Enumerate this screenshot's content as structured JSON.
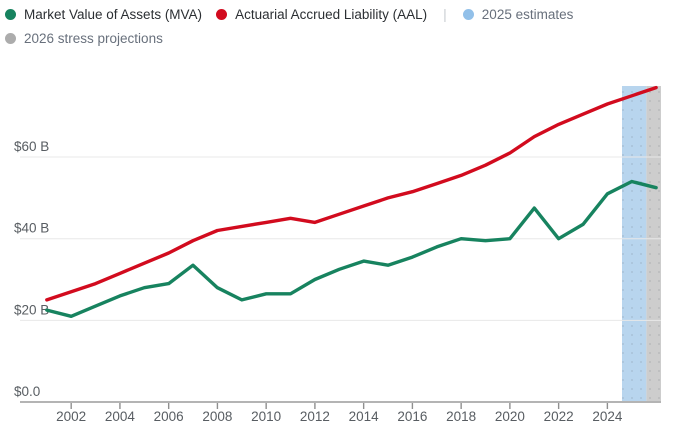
{
  "legend": {
    "separator": "|",
    "items": [
      {
        "id": "mva",
        "label": "Market Value of Assets (MVA)",
        "color": "#17835f",
        "muted": false
      },
      {
        "id": "aal",
        "label": "Actuarial Accrued Liability (AAL)",
        "color": "#d20b1e",
        "muted": false
      },
      {
        "id": "estimates-2025",
        "label": "2025 estimates",
        "color": "#92c0e9",
        "muted": true
      },
      {
        "id": "stress-2026",
        "label": "2026 stress projections",
        "color": "#acacac",
        "muted": true
      }
    ]
  },
  "chart_data": {
    "type": "line",
    "x": [
      2001,
      2002,
      2003,
      2004,
      2005,
      2006,
      2007,
      2008,
      2009,
      2010,
      2011,
      2012,
      2013,
      2014,
      2015,
      2016,
      2017,
      2018,
      2019,
      2020,
      2021,
      2022,
      2023,
      2024,
      2025,
      2026
    ],
    "series": [
      {
        "name": "Market Value of Assets (MVA)",
        "color": "#17835f",
        "values": [
          22.5,
          21,
          23.5,
          26,
          28,
          29,
          33.5,
          28,
          25,
          26.5,
          26.5,
          30,
          32.5,
          34.5,
          33.5,
          35.5,
          38,
          40,
          39.5,
          40,
          47.5,
          40,
          43.5,
          51,
          54,
          52.5
        ]
      },
      {
        "name": "Actuarial Accrued Liability (AAL)",
        "color": "#d20b1e",
        "values": [
          25,
          27,
          29,
          31.5,
          34,
          36.5,
          39.5,
          42,
          43,
          44,
          45,
          44,
          46,
          48,
          50,
          51.5,
          53.5,
          55.5,
          58,
          61,
          65,
          68,
          70.5,
          73,
          75,
          77
        ]
      }
    ],
    "bands": [
      {
        "label": "2025 estimates",
        "x_start": 2024.6,
        "x_end": 2025.6,
        "color": "#b8d5ee"
      },
      {
        "label": "2026 stress projections",
        "x_start": 2025.6,
        "x_end": 2026.2,
        "color": "#cdcdcd"
      }
    ],
    "y_ticks": [
      {
        "value": 0,
        "label": "$0.0"
      },
      {
        "value": 20,
        "label": "$20 B"
      },
      {
        "value": 40,
        "label": "$40 B"
      },
      {
        "value": 60,
        "label": "$60 B"
      }
    ],
    "x_ticks": [
      2002,
      2004,
      2006,
      2008,
      2010,
      2012,
      2014,
      2016,
      2018,
      2020,
      2022,
      2024
    ],
    "xlim": [
      1999.9,
      2026.2
    ],
    "ylim": [
      0,
      77.4
    ],
    "grid": true,
    "legend_position": "top-left",
    "unit": "billions USD"
  },
  "colors": {
    "grid_line": "#e8e8e8",
    "axis_line": "#b4b4b4",
    "tick_mark": "#8f8f8f",
    "axis_text": "#585d62"
  }
}
